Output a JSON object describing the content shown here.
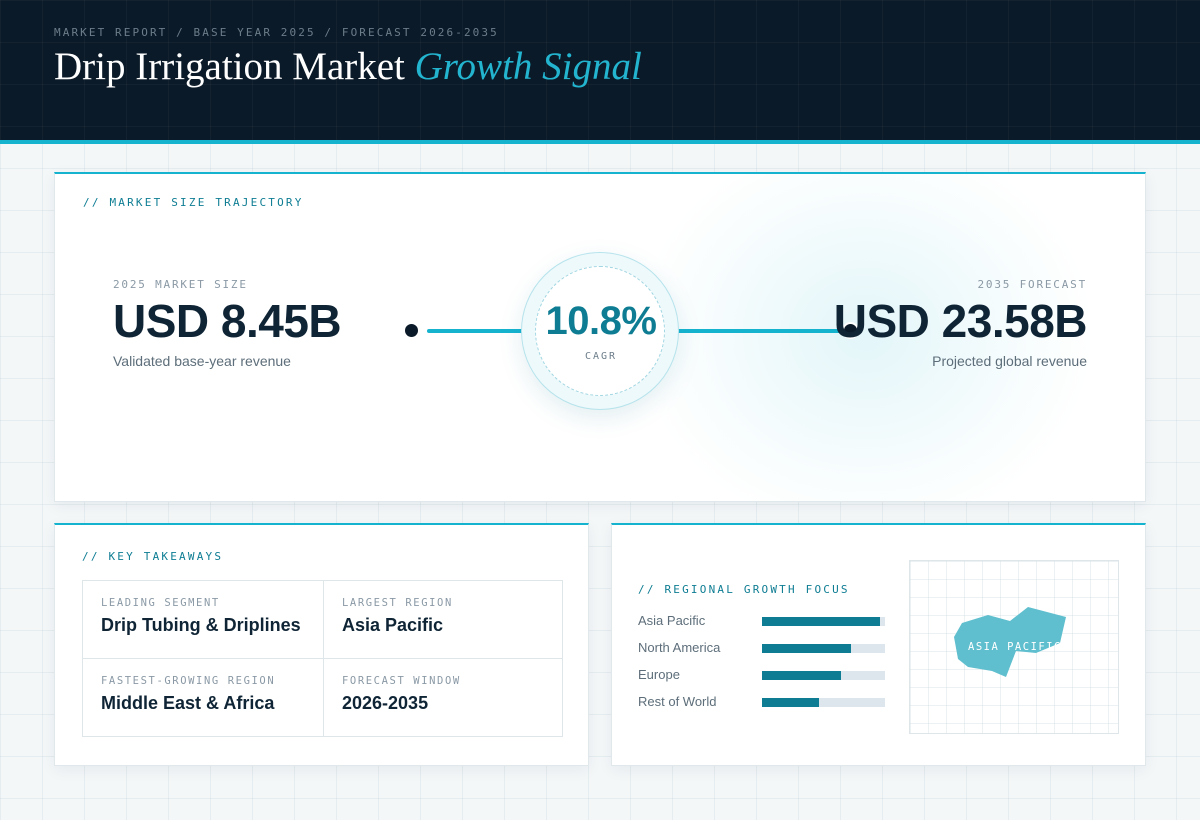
{
  "header": {
    "kicker": "MARKET REPORT / BASE YEAR 2025 / FORECAST 2026-2035",
    "title_main": "Drip Irrigation Market",
    "title_accent": "Growth Signal"
  },
  "trajectory": {
    "label": "// MARKET SIZE TRAJECTORY",
    "base": {
      "kicker": "2025 MARKET SIZE",
      "value": "USD 8.45B",
      "sub": "Validated base-year revenue"
    },
    "forecast": {
      "kicker": "2035 FORECAST",
      "value": "USD 23.58B",
      "sub": "Projected global revenue"
    },
    "cagr": {
      "value": "10.8%",
      "label": "CAGR"
    }
  },
  "takeaways": {
    "label": "// KEY TAKEAWAYS",
    "items": [
      {
        "kicker": "LEADING SEGMENT",
        "value": "Drip Tubing & Driplines"
      },
      {
        "kicker": "LARGEST REGION",
        "value": "Asia Pacific"
      },
      {
        "kicker": "FASTEST-GROWING REGION",
        "value": "Middle East & Africa"
      },
      {
        "kicker": "FORECAST WINDOW",
        "value": "2026-2035"
      }
    ]
  },
  "regional": {
    "label": "// REGIONAL GROWTH FOCUS",
    "regions": [
      {
        "name": "Asia Pacific",
        "share": 0.96
      },
      {
        "name": "North America",
        "share": 0.72
      },
      {
        "name": "Europe",
        "share": 0.64
      },
      {
        "name": "Rest of World",
        "share": 0.46
      }
    ],
    "map_label": "ASIA PACIFIC",
    "map_color": "#5fbfce"
  },
  "colors": {
    "accent": "#16b3cf",
    "teal": "#0e7d93",
    "navy": "#0b1a28"
  }
}
